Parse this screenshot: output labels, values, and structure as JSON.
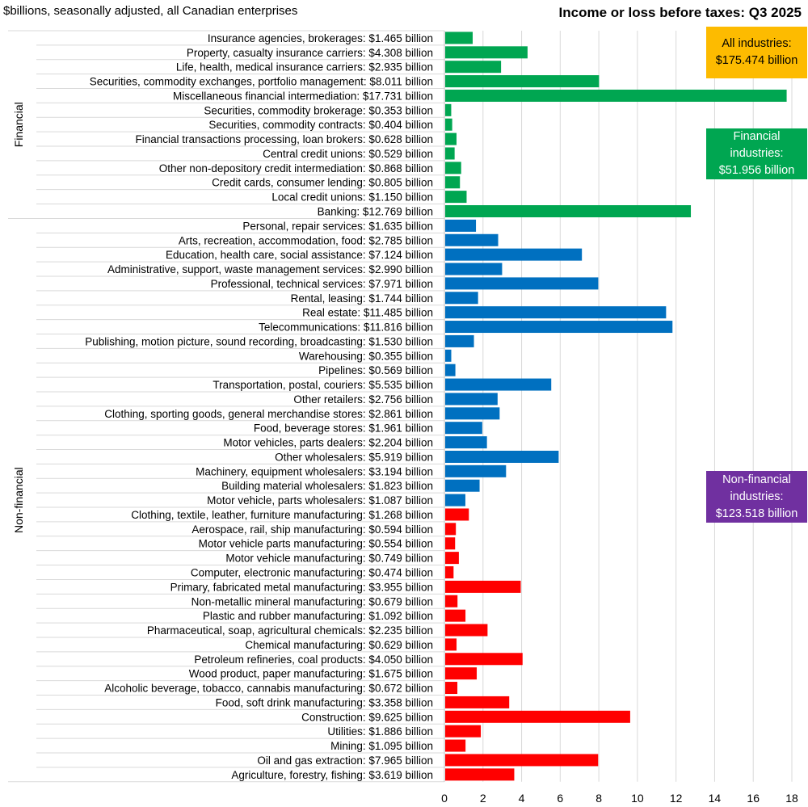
{
  "header": {
    "subtitle": "$billions, seasonally adjusted, all Canadian enterprises",
    "title": "Income or loss before taxes: Q3 2025"
  },
  "callouts": {
    "all": {
      "label": "All industries:",
      "value": "$175.474 billion",
      "color": "#fdbb00"
    },
    "financial": {
      "label_line1": "Financial",
      "label_line2": "industries:",
      "value": "$51.956 billion",
      "color": "#00a651"
    },
    "nonfinancial": {
      "label_line1": "Non-financial",
      "label_line2": "industries:",
      "value": "$123.518 billion",
      "color": "#7030a0"
    }
  },
  "chart_data": {
    "type": "bar",
    "orientation": "horizontal",
    "title": "Income or loss before taxes: Q3 2025",
    "xlabel": "",
    "ylabel": "",
    "xlim": [
      0,
      18
    ],
    "xticks": [
      0,
      2,
      4,
      6,
      8,
      10,
      12,
      14,
      16,
      18
    ],
    "grid": "vertical",
    "groups": [
      {
        "name": "Financial",
        "color": "#00a651",
        "first": 0,
        "last": 12
      },
      {
        "name": "Non-financial",
        "color": "#0070c0",
        "first": 13,
        "last": 51
      }
    ],
    "colors": {
      "financial": "#00a651",
      "services": "#0070c0",
      "goods": "#ff0000"
    },
    "categories": [
      {
        "label": "Insurance agencies, brokerages: $1.465 billion",
        "value": 1.465,
        "color": "#00a651"
      },
      {
        "label": "Property, casualty insurance carriers: $4.308 billion",
        "value": 4.308,
        "color": "#00a651"
      },
      {
        "label": "Life, health, medical insurance carriers: $2.935 billion",
        "value": 2.935,
        "color": "#00a651"
      },
      {
        "label": "Securities, commodity exchanges, portfolio management: $8.011 billion",
        "value": 8.011,
        "color": "#00a651"
      },
      {
        "label": "Miscellaneous financial intermediation: $17.731 billion",
        "value": 17.731,
        "color": "#00a651"
      },
      {
        "label": "Securities, commodity brokerage: $0.353 billion",
        "value": 0.353,
        "color": "#00a651"
      },
      {
        "label": "Securities, commodity contracts: $0.404 billion",
        "value": 0.404,
        "color": "#00a651"
      },
      {
        "label": "Financial transactions processing, loan brokers: $0.628 billion",
        "value": 0.628,
        "color": "#00a651"
      },
      {
        "label": "Central credit unions: $0.529 billion",
        "value": 0.529,
        "color": "#00a651"
      },
      {
        "label": "Other non-depository credit intermediation: $0.868 billion",
        "value": 0.868,
        "color": "#00a651"
      },
      {
        "label": "Credit cards, consumer lending: $0.805 billion",
        "value": 0.805,
        "color": "#00a651"
      },
      {
        "label": "Local credit unions: $1.150 billion",
        "value": 1.15,
        "color": "#00a651"
      },
      {
        "label": "Banking: $12.769 billion",
        "value": 12.769,
        "color": "#00a651"
      },
      {
        "label": "Personal, repair services: $1.635 billion",
        "value": 1.635,
        "color": "#0070c0"
      },
      {
        "label": "Arts, recreation, accommodation, food: $2.785 billion",
        "value": 2.785,
        "color": "#0070c0"
      },
      {
        "label": "Education, health care, social assistance: $7.124 billion",
        "value": 7.124,
        "color": "#0070c0"
      },
      {
        "label": "Administrative, support, waste management services: $2.990 billion",
        "value": 2.99,
        "color": "#0070c0"
      },
      {
        "label": "Professional, technical services: $7.971 billion",
        "value": 7.971,
        "color": "#0070c0"
      },
      {
        "label": "Rental, leasing: $1.744 billion",
        "value": 1.744,
        "color": "#0070c0"
      },
      {
        "label": "Real estate: $11.485 billion",
        "value": 11.485,
        "color": "#0070c0"
      },
      {
        "label": "Telecommunications: $11.816 billion",
        "value": 11.816,
        "color": "#0070c0"
      },
      {
        "label": "Publishing, motion picture, sound recording, broadcasting: $1.530 billion",
        "value": 1.53,
        "color": "#0070c0"
      },
      {
        "label": "Warehousing: $0.355 billion",
        "value": 0.355,
        "color": "#0070c0"
      },
      {
        "label": "Pipelines: $0.569 billion",
        "value": 0.569,
        "color": "#0070c0"
      },
      {
        "label": "Transportation, postal, couriers: $5.535 billion",
        "value": 5.535,
        "color": "#0070c0"
      },
      {
        "label": "Other retailers: $2.756 billion",
        "value": 2.756,
        "color": "#0070c0"
      },
      {
        "label": "Clothing, sporting goods, general merchandise stores: $2.861 billion",
        "value": 2.861,
        "color": "#0070c0"
      },
      {
        "label": "Food, beverage stores: $1.961 billion",
        "value": 1.961,
        "color": "#0070c0"
      },
      {
        "label": "Motor vehicles, parts dealers: $2.204 billion",
        "value": 2.204,
        "color": "#0070c0"
      },
      {
        "label": "Other wholesalers: $5.919 billion",
        "value": 5.919,
        "color": "#0070c0"
      },
      {
        "label": "Machinery, equipment wholesalers: $3.194 billion",
        "value": 3.194,
        "color": "#0070c0"
      },
      {
        "label": "Building material wholesalers: $1.823 billion",
        "value": 1.823,
        "color": "#0070c0"
      },
      {
        "label": "Motor vehicle, parts wholesalers: $1.087 billion",
        "value": 1.087,
        "color": "#0070c0"
      },
      {
        "label": "Clothing, textile, leather, furniture manufacturing: $1.268 billion",
        "value": 1.268,
        "color": "#ff0000"
      },
      {
        "label": "Aerospace, rail, ship manufacturing: $0.594 billion",
        "value": 0.594,
        "color": "#ff0000"
      },
      {
        "label": "Motor vehicle parts manufacturing: $0.554 billion",
        "value": 0.554,
        "color": "#ff0000"
      },
      {
        "label": "Motor vehicle manufacturing: $0.749 billion",
        "value": 0.749,
        "color": "#ff0000"
      },
      {
        "label": "Computer, electronic manufacturing: $0.474 billion",
        "value": 0.474,
        "color": "#ff0000"
      },
      {
        "label": "Primary, fabricated metal manufacturing: $3.955 billion",
        "value": 3.955,
        "color": "#ff0000"
      },
      {
        "label": "Non-metallic mineral manufacturing: $0.679 billion",
        "value": 0.679,
        "color": "#ff0000"
      },
      {
        "label": "Plastic and rubber manufacturing: $1.092 billion",
        "value": 1.092,
        "color": "#ff0000"
      },
      {
        "label": "Pharmaceutical, soap, agricultural chemicals: $2.235 billion",
        "value": 2.235,
        "color": "#ff0000"
      },
      {
        "label": "Chemical manufacturing: $0.629 billion",
        "value": 0.629,
        "color": "#ff0000"
      },
      {
        "label": "Petroleum refineries, coal products: $4.050 billion",
        "value": 4.05,
        "color": "#ff0000"
      },
      {
        "label": "Wood product, paper manufacturing: $1.675 billion",
        "value": 1.675,
        "color": "#ff0000"
      },
      {
        "label": "Alcoholic beverage, tobacco, cannabis manufacturing: $0.672 billion",
        "value": 0.672,
        "color": "#ff0000"
      },
      {
        "label": "Food, soft drink manufacturing: $3.358 billion",
        "value": 3.358,
        "color": "#ff0000"
      },
      {
        "label": "Construction: $9.625 billion",
        "value": 9.625,
        "color": "#ff0000"
      },
      {
        "label": "Utilities: $1.886 billion",
        "value": 1.886,
        "color": "#ff0000"
      },
      {
        "label": "Mining: $1.095 billion",
        "value": 1.095,
        "color": "#ff0000"
      },
      {
        "label": "Oil and gas extraction: $7.965 billion",
        "value": 7.965,
        "color": "#ff0000"
      },
      {
        "label": "Agriculture, forestry, fishing: $3.619 billion",
        "value": 3.619,
        "color": "#ff0000"
      }
    ]
  }
}
